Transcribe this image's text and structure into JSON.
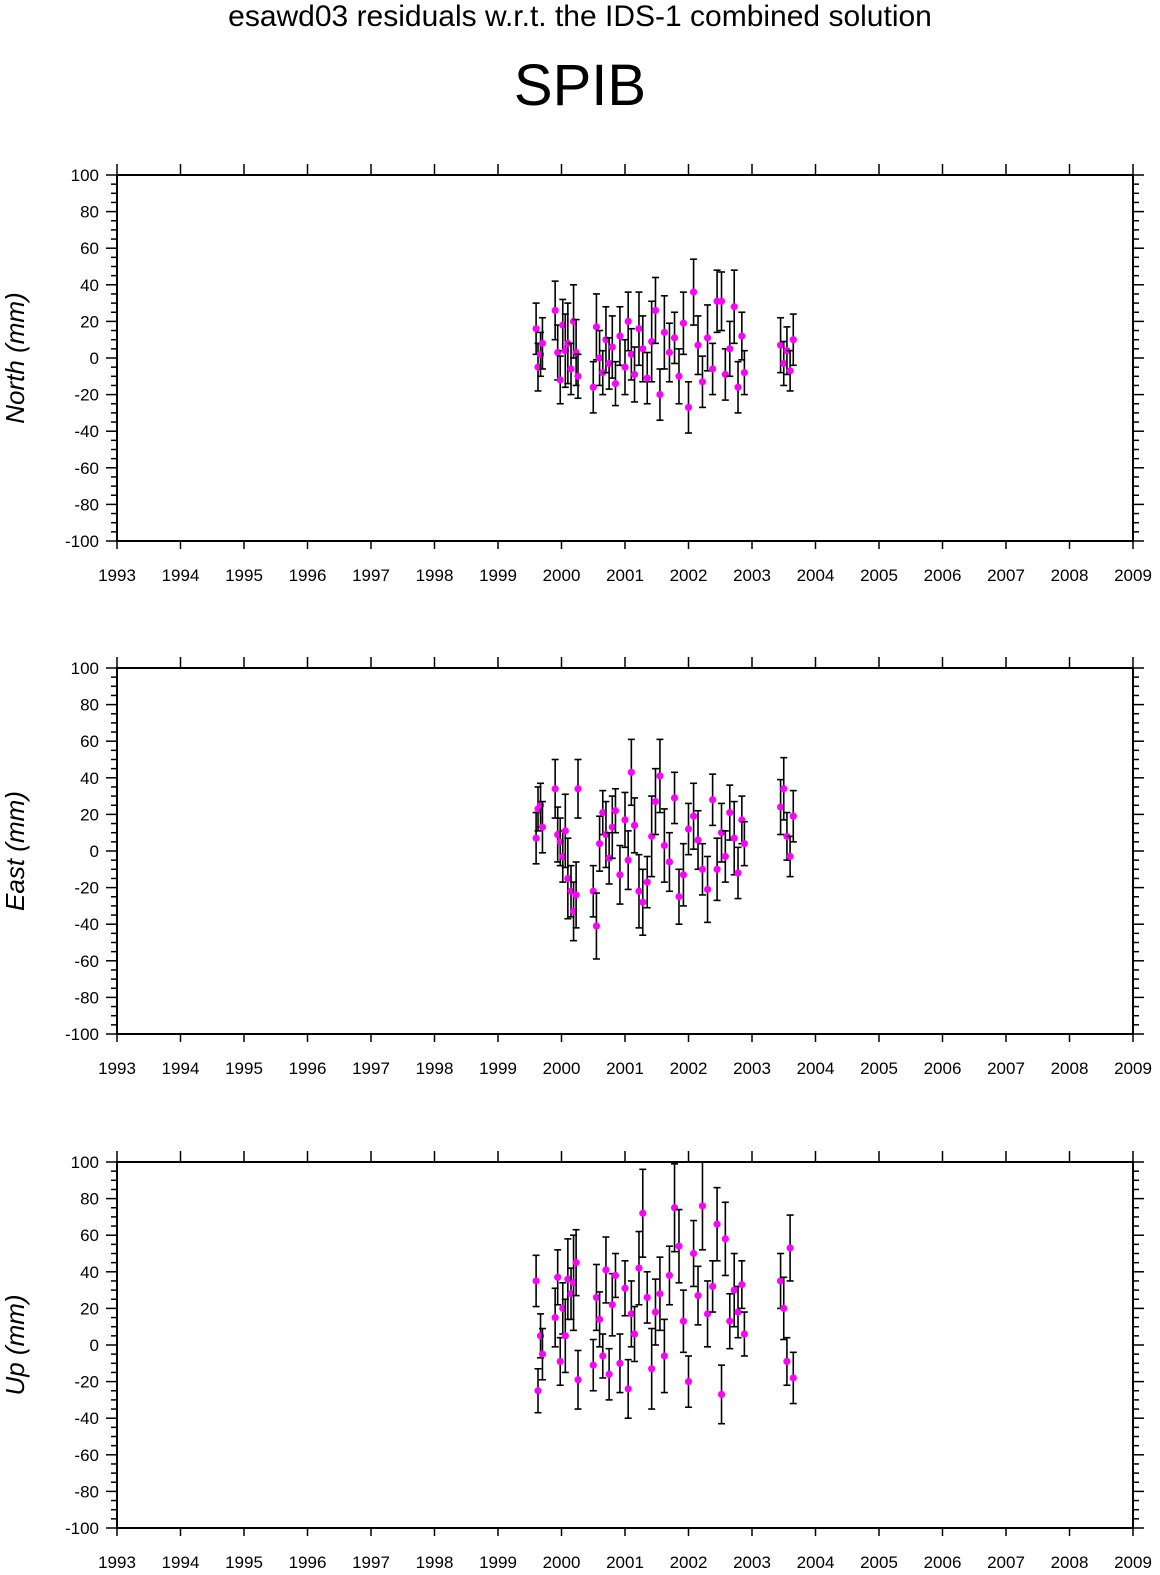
{
  "title": "esawd03 residuals w.r.t. the IDS-1 combined solution",
  "station": "SPIB",
  "colors": {
    "point": "#ff00ff",
    "errorbar": "#000000",
    "axis": "#000000"
  },
  "chart_data": [
    {
      "type": "scatter",
      "ylabel": "North (mm)",
      "xlim": [
        1993,
        2009
      ],
      "ylim": [
        -100,
        100
      ],
      "xticks": [
        "1993",
        "1994",
        "1995",
        "1996",
        "1997",
        "1998",
        "1999",
        "2000",
        "2001",
        "2002",
        "2003",
        "2004",
        "2005",
        "2006",
        "2007",
        "2008",
        "2009"
      ],
      "yticks": [
        "100",
        "80",
        "60",
        "40",
        "20",
        "0",
        "-20",
        "-40",
        "-60",
        "-80",
        "-100"
      ],
      "series": [
        {
          "points": [
            [
              1999.6,
              16,
              14
            ],
            [
              1999.63,
              -5,
              13
            ],
            [
              1999.67,
              2,
              12
            ],
            [
              1999.7,
              8,
              14
            ],
            [
              1999.9,
              26,
              16
            ],
            [
              1999.94,
              3,
              15
            ],
            [
              1999.98,
              -12,
              13
            ],
            [
              2000.02,
              18,
              14
            ],
            [
              2000.06,
              4,
              20
            ],
            [
              2000.1,
              8,
              22
            ],
            [
              2000.15,
              -6,
              14
            ],
            [
              2000.19,
              20,
              20
            ],
            [
              2000.23,
              3,
              18
            ],
            [
              2000.26,
              -10,
              12
            ],
            [
              2000.5,
              -16,
              14
            ],
            [
              2000.55,
              17,
              18
            ],
            [
              2000.6,
              0,
              15
            ],
            [
              2000.65,
              -8,
              12
            ],
            [
              2000.7,
              10,
              18
            ],
            [
              2000.75,
              -3,
              14
            ],
            [
              2000.8,
              6,
              17
            ],
            [
              2000.85,
              -14,
              12
            ],
            [
              2000.92,
              12,
              16
            ],
            [
              2001.0,
              -5,
              15
            ],
            [
              2001.05,
              20,
              16
            ],
            [
              2001.1,
              2,
              14
            ],
            [
              2001.15,
              -9,
              15
            ],
            [
              2001.22,
              16,
              20
            ],
            [
              2001.28,
              5,
              18
            ],
            [
              2001.35,
              -11,
              14
            ],
            [
              2001.42,
              9,
              22
            ],
            [
              2001.48,
              26,
              18
            ],
            [
              2001.55,
              -20,
              14
            ],
            [
              2001.62,
              14,
              20
            ],
            [
              2001.7,
              3,
              16
            ],
            [
              2001.78,
              11,
              14
            ],
            [
              2001.85,
              -10,
              15
            ],
            [
              2001.92,
              19,
              17
            ],
            [
              2002.0,
              -27,
              14
            ],
            [
              2002.08,
              36,
              18
            ],
            [
              2002.15,
              7,
              16
            ],
            [
              2002.22,
              -13,
              14
            ],
            [
              2002.3,
              11,
              18
            ],
            [
              2002.38,
              -6,
              14
            ],
            [
              2002.45,
              31,
              17
            ],
            [
              2002.52,
              31,
              16
            ],
            [
              2002.58,
              -9,
              14
            ],
            [
              2002.65,
              5,
              15
            ],
            [
              2002.72,
              28,
              20
            ],
            [
              2002.78,
              -16,
              14
            ],
            [
              2002.84,
              12,
              13
            ],
            [
              2002.88,
              -8,
              12
            ],
            [
              2003.45,
              7,
              15
            ],
            [
              2003.5,
              -3,
              12
            ],
            [
              2003.55,
              4,
              13
            ],
            [
              2003.6,
              -7,
              11
            ],
            [
              2003.65,
              10,
              14
            ]
          ]
        }
      ]
    },
    {
      "type": "scatter",
      "ylabel": "East (mm)",
      "xlim": [
        1993,
        2009
      ],
      "ylim": [
        -100,
        100
      ],
      "xticks": [
        "1993",
        "1994",
        "1995",
        "1996",
        "1997",
        "1998",
        "1999",
        "2000",
        "2001",
        "2002",
        "2003",
        "2004",
        "2005",
        "2006",
        "2007",
        "2008",
        "2009"
      ],
      "yticks": [
        "100",
        "80",
        "60",
        "40",
        "20",
        "0",
        "-20",
        "-40",
        "-60",
        "-80",
        "-100"
      ],
      "series": [
        {
          "points": [
            [
              1999.6,
              7,
              14
            ],
            [
              1999.63,
              23,
              12
            ],
            [
              1999.67,
              25,
              12
            ],
            [
              1999.7,
              13,
              14
            ],
            [
              1999.9,
              34,
              16
            ],
            [
              1999.94,
              9,
              15
            ],
            [
              1999.98,
              5,
              13
            ],
            [
              2000.02,
              -3,
              14
            ],
            [
              2000.06,
              11,
              20
            ],
            [
              2000.1,
              -15,
              22
            ],
            [
              2000.15,
              -22,
              14
            ],
            [
              2000.19,
              -33,
              16
            ],
            [
              2000.23,
              -24,
              18
            ],
            [
              2000.26,
              34,
              16
            ],
            [
              2000.5,
              -22,
              14
            ],
            [
              2000.55,
              -41,
              18
            ],
            [
              2000.6,
              4,
              15
            ],
            [
              2000.65,
              21,
              12
            ],
            [
              2000.7,
              9,
              18
            ],
            [
              2000.75,
              -4,
              14
            ],
            [
              2000.8,
              13,
              17
            ],
            [
              2000.85,
              22,
              12
            ],
            [
              2000.92,
              -13,
              16
            ],
            [
              2001.0,
              17,
              15
            ],
            [
              2001.05,
              -5,
              16
            ],
            [
              2001.1,
              43,
              18
            ],
            [
              2001.15,
              14,
              15
            ],
            [
              2001.22,
              -22,
              20
            ],
            [
              2001.28,
              -28,
              18
            ],
            [
              2001.35,
              -17,
              14
            ],
            [
              2001.42,
              8,
              22
            ],
            [
              2001.48,
              27,
              18
            ],
            [
              2001.55,
              41,
              20
            ],
            [
              2001.62,
              3,
              20
            ],
            [
              2001.7,
              -6,
              16
            ],
            [
              2001.78,
              29,
              14
            ],
            [
              2001.85,
              -25,
              15
            ],
            [
              2001.92,
              -13,
              17
            ],
            [
              2002.0,
              12,
              14
            ],
            [
              2002.08,
              19,
              18
            ],
            [
              2002.15,
              6,
              16
            ],
            [
              2002.22,
              -10,
              14
            ],
            [
              2002.3,
              -21,
              18
            ],
            [
              2002.38,
              28,
              14
            ],
            [
              2002.45,
              -10,
              17
            ],
            [
              2002.52,
              10,
              16
            ],
            [
              2002.58,
              -3,
              14
            ],
            [
              2002.65,
              21,
              15
            ],
            [
              2002.72,
              7,
              20
            ],
            [
              2002.78,
              -12,
              14
            ],
            [
              2002.84,
              17,
              13
            ],
            [
              2002.88,
              4,
              12
            ],
            [
              2003.45,
              24,
              15
            ],
            [
              2003.5,
              34,
              17
            ],
            [
              2003.55,
              8,
              13
            ],
            [
              2003.6,
              -3,
              11
            ],
            [
              2003.65,
              19,
              14
            ]
          ]
        }
      ]
    },
    {
      "type": "scatter",
      "ylabel": "Up (mm)",
      "xlim": [
        1993,
        2009
      ],
      "ylim": [
        -100,
        100
      ],
      "xticks": [
        "1993",
        "1994",
        "1995",
        "1996",
        "1997",
        "1998",
        "1999",
        "2000",
        "2001",
        "2002",
        "2003",
        "2004",
        "2005",
        "2006",
        "2007",
        "2008",
        "2009"
      ],
      "yticks": [
        "100",
        "80",
        "60",
        "40",
        "20",
        "0",
        "-20",
        "-40",
        "-60",
        "-80",
        "-100"
      ],
      "series": [
        {
          "points": [
            [
              1999.6,
              35,
              14
            ],
            [
              1999.63,
              -25,
              12
            ],
            [
              1999.67,
              5,
              12
            ],
            [
              1999.7,
              -5,
              14
            ],
            [
              1999.9,
              15,
              16
            ],
            [
              1999.94,
              37,
              15
            ],
            [
              1999.98,
              -9,
              13
            ],
            [
              2000.02,
              20,
              14
            ],
            [
              2000.06,
              5,
              20
            ],
            [
              2000.1,
              36,
              22
            ],
            [
              2000.15,
              28,
              14
            ],
            [
              2000.19,
              34,
              26
            ],
            [
              2000.23,
              45,
              18
            ],
            [
              2000.26,
              -19,
              16
            ],
            [
              2000.5,
              -11,
              14
            ],
            [
              2000.55,
              26,
              18
            ],
            [
              2000.6,
              14,
              15
            ],
            [
              2000.65,
              -6,
              12
            ],
            [
              2000.7,
              41,
              18
            ],
            [
              2000.75,
              -16,
              14
            ],
            [
              2000.8,
              22,
              17
            ],
            [
              2000.85,
              38,
              12
            ],
            [
              2000.92,
              -10,
              16
            ],
            [
              2001.0,
              31,
              15
            ],
            [
              2001.05,
              -24,
              16
            ],
            [
              2001.1,
              17,
              18
            ],
            [
              2001.15,
              6,
              15
            ],
            [
              2001.22,
              42,
              20
            ],
            [
              2001.28,
              72,
              24
            ],
            [
              2001.35,
              26,
              14
            ],
            [
              2001.42,
              -13,
              22
            ],
            [
              2001.48,
              18,
              18
            ],
            [
              2001.55,
              28,
              20
            ],
            [
              2001.62,
              -6,
              20
            ],
            [
              2001.7,
              38,
              16
            ],
            [
              2001.78,
              75,
              24
            ],
            [
              2001.85,
              54,
              20
            ],
            [
              2001.92,
              13,
              17
            ],
            [
              2002.0,
              -20,
              14
            ],
            [
              2002.08,
              50,
              18
            ],
            [
              2002.15,
              27,
              16
            ],
            [
              2002.22,
              76,
              24
            ],
            [
              2002.3,
              17,
              18
            ],
            [
              2002.38,
              32,
              14
            ],
            [
              2002.45,
              66,
              20
            ],
            [
              2002.52,
              -27,
              16
            ],
            [
              2002.58,
              58,
              20
            ],
            [
              2002.65,
              13,
              15
            ],
            [
              2002.72,
              30,
              20
            ],
            [
              2002.78,
              18,
              14
            ],
            [
              2002.84,
              33,
              13
            ],
            [
              2002.88,
              6,
              12
            ],
            [
              2003.45,
              35,
              15
            ],
            [
              2003.5,
              20,
              17
            ],
            [
              2003.55,
              -9,
              13
            ],
            [
              2003.6,
              53,
              18
            ],
            [
              2003.65,
              -18,
              14
            ]
          ]
        }
      ]
    }
  ]
}
